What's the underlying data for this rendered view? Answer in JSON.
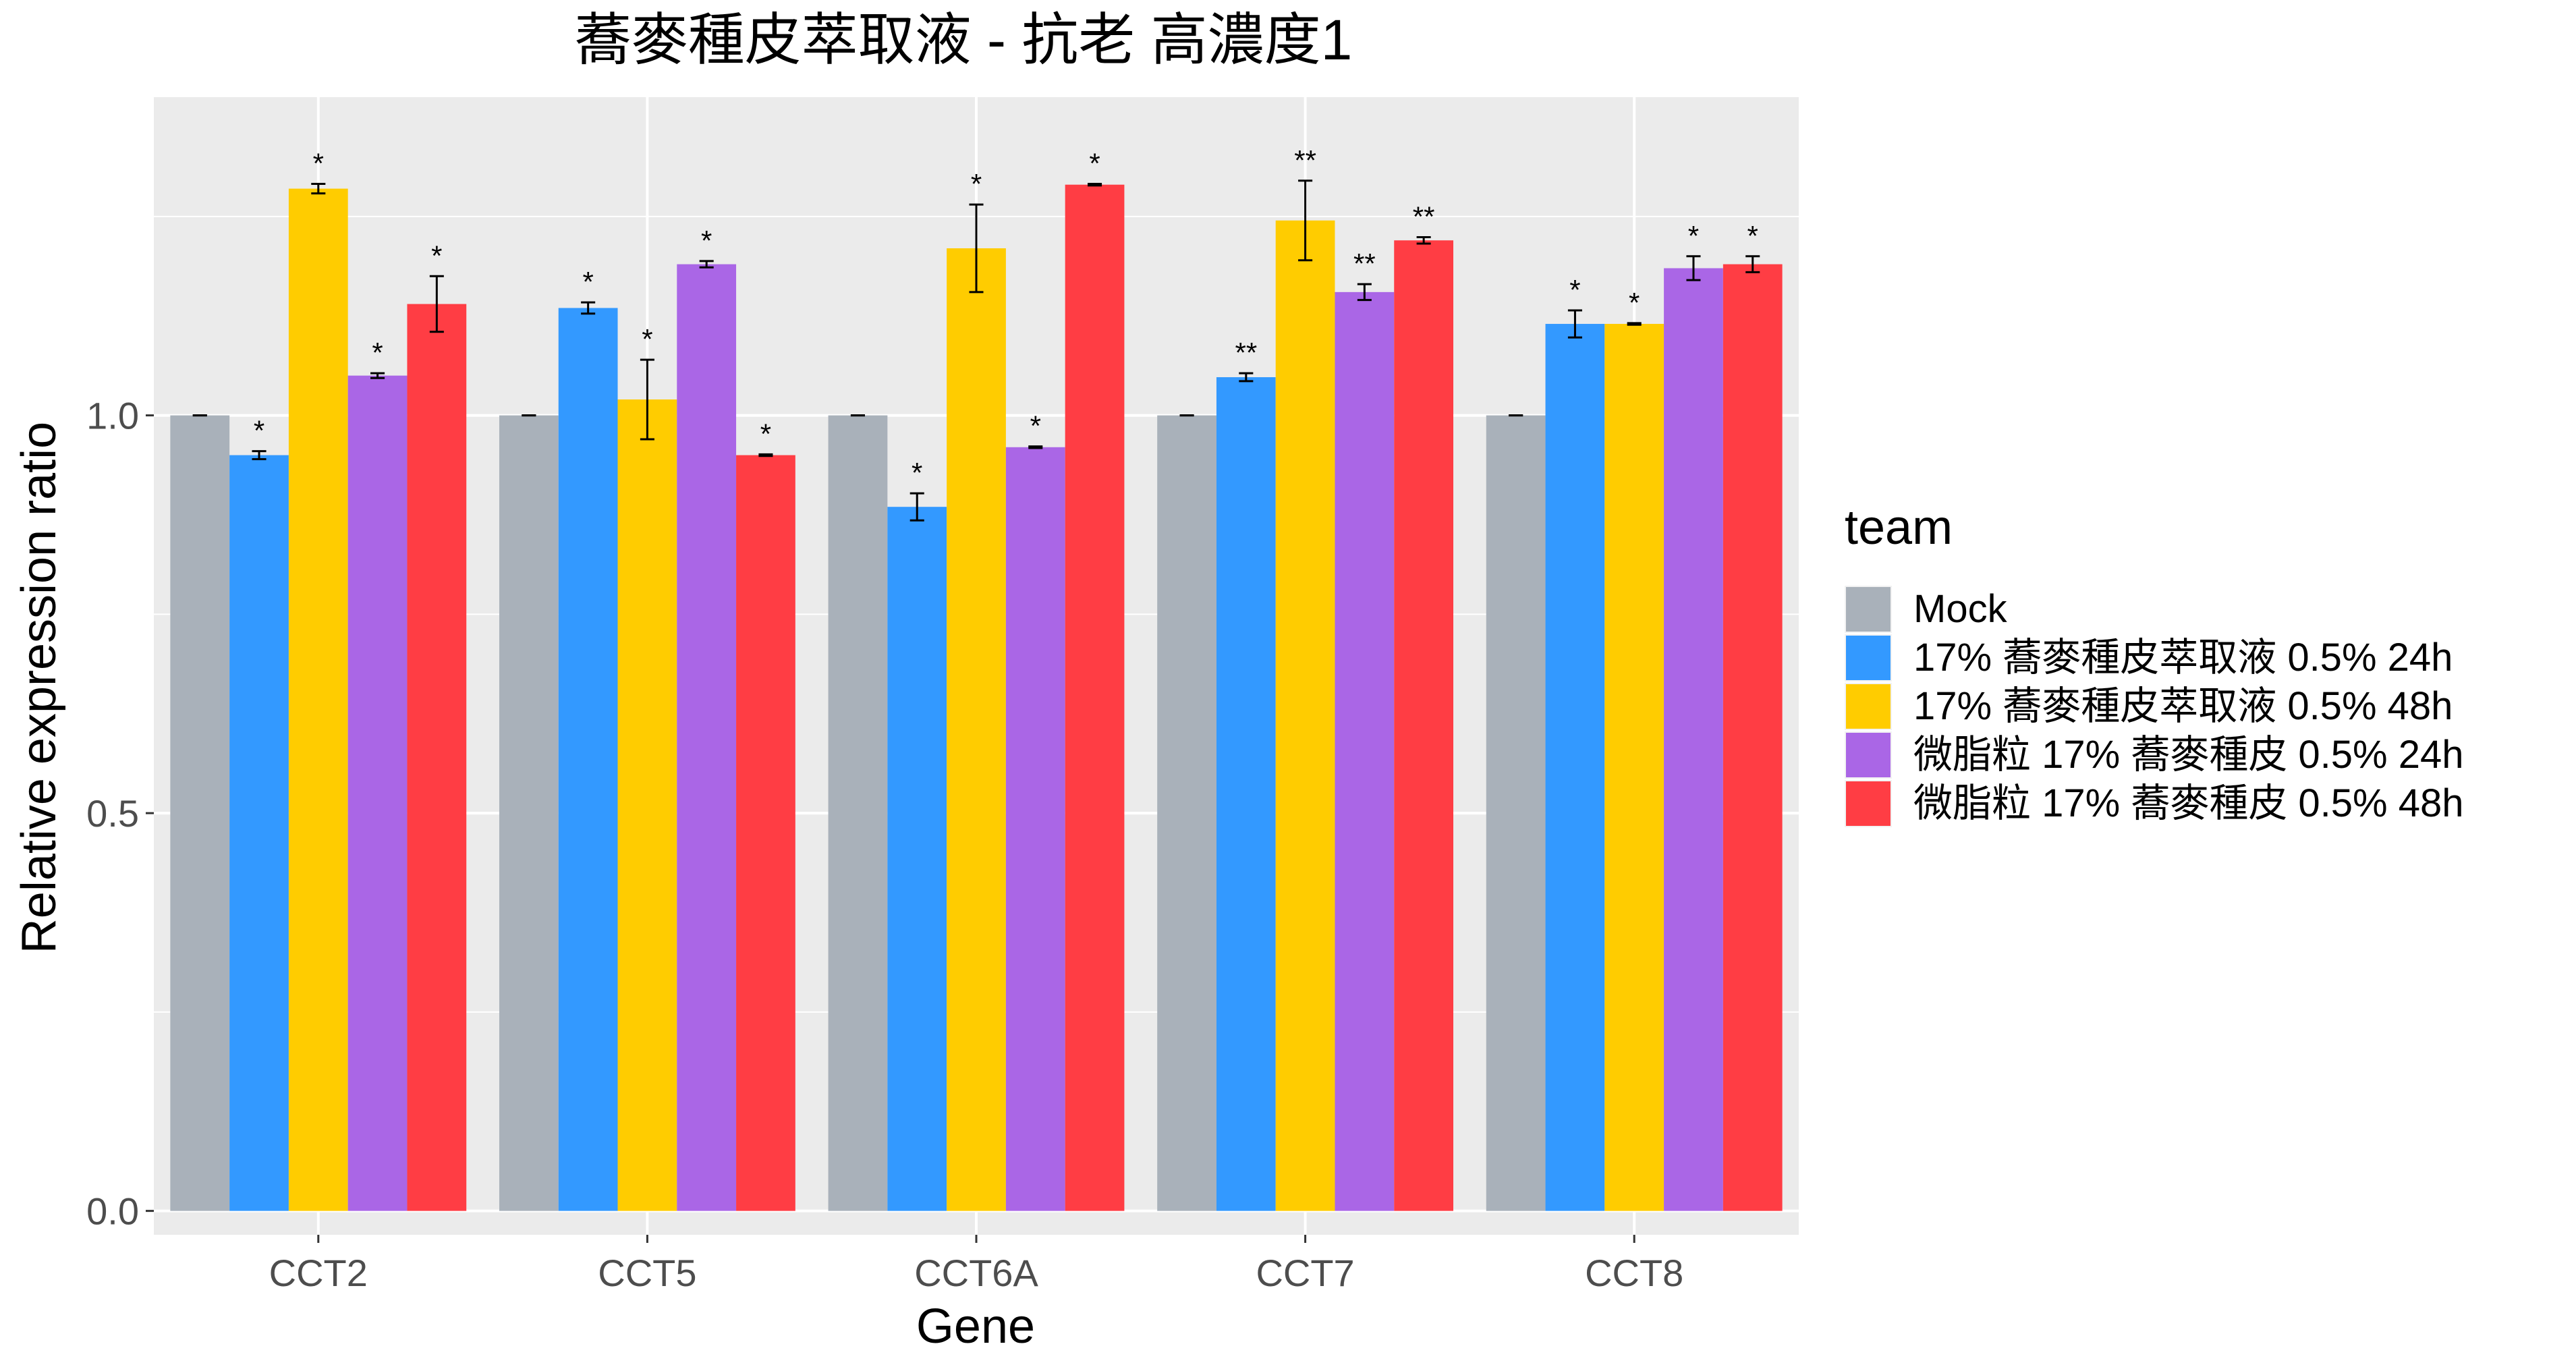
{
  "chart_data": {
    "type": "bar",
    "title": "蕎麥種皮萃取液 - 抗老 高濃度1",
    "xlabel": "Gene",
    "ylabel": "Relative expression ratio",
    "ylim": [
      -0.03,
      1.4
    ],
    "yticks": [
      0.0,
      0.5,
      1.0
    ],
    "ytick_labels": [
      "0.0",
      "0.5",
      "1.0"
    ],
    "grid": true,
    "legend_title": "team",
    "legend_position": "right",
    "categories": [
      "CCT2",
      "CCT5",
      "CCT6A",
      "CCT7",
      "CCT8"
    ],
    "series": [
      {
        "name": "Mock",
        "color": "#A9B1BA",
        "values": [
          1.0,
          1.0,
          1.0,
          1.0,
          1.0
        ],
        "errors": [
          0.0,
          0.0,
          0.0,
          0.0,
          0.0
        ],
        "sig": [
          "",
          "",
          "",
          "",
          ""
        ]
      },
      {
        "name": "17% 蕎麥種皮萃取液 0.5% 24h",
        "color": "#3399FF",
        "values": [
          0.95,
          1.135,
          0.885,
          1.048,
          1.115
        ],
        "errors": [
          0.005,
          0.007,
          0.017,
          0.005,
          0.017
        ],
        "sig": [
          "*",
          "*",
          "*",
          "**",
          "*"
        ]
      },
      {
        "name": "17% 蕎麥種皮萃取液 0.5% 48h",
        "color": "#FFCC00",
        "values": [
          1.285,
          1.02,
          1.21,
          1.245,
          1.115
        ],
        "errors": [
          0.006,
          0.05,
          0.055,
          0.05,
          0.001
        ],
        "sig": [
          "*",
          "*",
          "*",
          "**",
          "*"
        ]
      },
      {
        "name": "微脂粒 17% 蕎麥種皮 0.5% 24h",
        "color": "#AA66E6",
        "values": [
          1.05,
          1.19,
          0.96,
          1.155,
          1.185
        ],
        "errors": [
          0.003,
          0.004,
          0.001,
          0.01,
          0.015
        ],
        "sig": [
          "*",
          "*",
          "*",
          "**",
          "*"
        ]
      },
      {
        "name": "微脂粒 17% 蕎麥種皮 0.5% 48h",
        "color": "#FF3D44",
        "values": [
          1.14,
          0.95,
          1.29,
          1.22,
          1.19
        ],
        "errors": [
          0.035,
          0.001,
          0.001,
          0.004,
          0.01
        ],
        "sig": [
          "*",
          "*",
          "*",
          "**",
          "*"
        ]
      }
    ]
  }
}
